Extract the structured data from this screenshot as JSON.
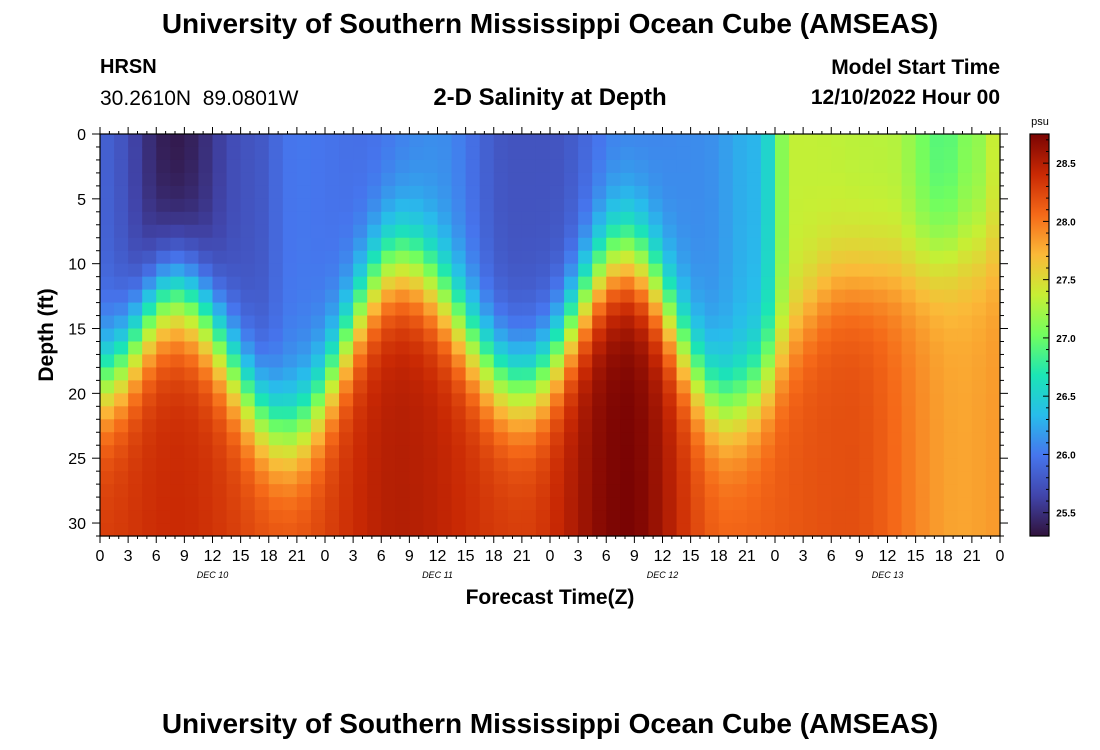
{
  "header": {
    "title": "University of Southern Mississippi Ocean Cube (AMSEAS)",
    "station": "HRSN",
    "coordinates": "30.2610N  89.0801W",
    "subtitle": "2-D Salinity at Depth",
    "model_label": "Model Start Time",
    "model_date": "12/10/2022 Hour 00"
  },
  "footer": {
    "title": "University of Southern Mississippi Ocean Cube (AMSEAS)"
  },
  "chart_data": {
    "type": "heatmap",
    "title": "2-D Salinity at Depth",
    "xlabel": "Forecast Time(Z)",
    "ylabel": "Depth (ft)",
    "xlim": [
      0,
      96
    ],
    "ylim": [
      0,
      31
    ],
    "x_ticks": [
      0,
      3,
      6,
      9,
      12,
      15,
      18,
      21,
      24,
      27,
      30,
      33,
      36,
      39,
      42,
      45,
      48,
      51,
      54,
      57,
      60,
      63,
      66,
      69,
      72,
      75,
      78,
      81,
      84,
      87,
      90,
      93,
      96
    ],
    "x_tick_labels": [
      "0",
      "3",
      "6",
      "9",
      "12",
      "15",
      "18",
      "21",
      "0",
      "3",
      "6",
      "9",
      "12",
      "15",
      "18",
      "21",
      "0",
      "3",
      "6",
      "9",
      "12",
      "15",
      "18",
      "21",
      "0",
      "3",
      "6",
      "9",
      "12",
      "15",
      "18",
      "21",
      "0"
    ],
    "day_labels": [
      {
        "label": "DEC 10",
        "hour": 12
      },
      {
        "label": "DEC 11",
        "hour": 36
      },
      {
        "label": "DEC 12",
        "hour": 60
      },
      {
        "label": "DEC 13",
        "hour": 84
      }
    ],
    "y_ticks": [
      0,
      5,
      10,
      15,
      20,
      25,
      30
    ],
    "y_tick_labels": [
      "0",
      "5",
      "10",
      "15",
      "20",
      "25",
      "30"
    ],
    "colorbar": {
      "unit": "psu",
      "min": 25.3,
      "max": 28.75,
      "ticks": [
        25.5,
        26.0,
        26.5,
        27.0,
        27.5,
        28.0,
        28.5
      ],
      "tick_labels": [
        "25.5",
        "26.0",
        "26.5",
        "27.0",
        "27.5",
        "28.0",
        "28.5"
      ]
    },
    "halocline_depth_ft": {
      "hours": [
        0,
        8,
        20,
        32,
        45,
        56,
        67,
        80,
        96
      ],
      "depths": [
        19,
        12.5,
        23,
        10,
        19.5,
        9.5,
        21,
        11,
        9
      ]
    },
    "surface_salinity_psu": {
      "hours": [
        0,
        8,
        16,
        21,
        28,
        36,
        44,
        48,
        56,
        64,
        70,
        74,
        84,
        90,
        93,
        96
      ],
      "values": [
        25.85,
        25.35,
        25.75,
        26.0,
        25.95,
        26.1,
        25.75,
        25.75,
        26.05,
        26.1,
        26.3,
        27.35,
        27.3,
        26.9,
        27.1,
        27.4
      ]
    },
    "bottom_salinity_psu": {
      "hours": [
        0,
        8,
        20,
        32,
        45,
        56,
        67,
        80,
        92,
        96
      ],
      "values": [
        28.3,
        28.4,
        28.2,
        28.5,
        28.3,
        28.75,
        28.1,
        28.2,
        27.8,
        27.85
      ]
    }
  }
}
